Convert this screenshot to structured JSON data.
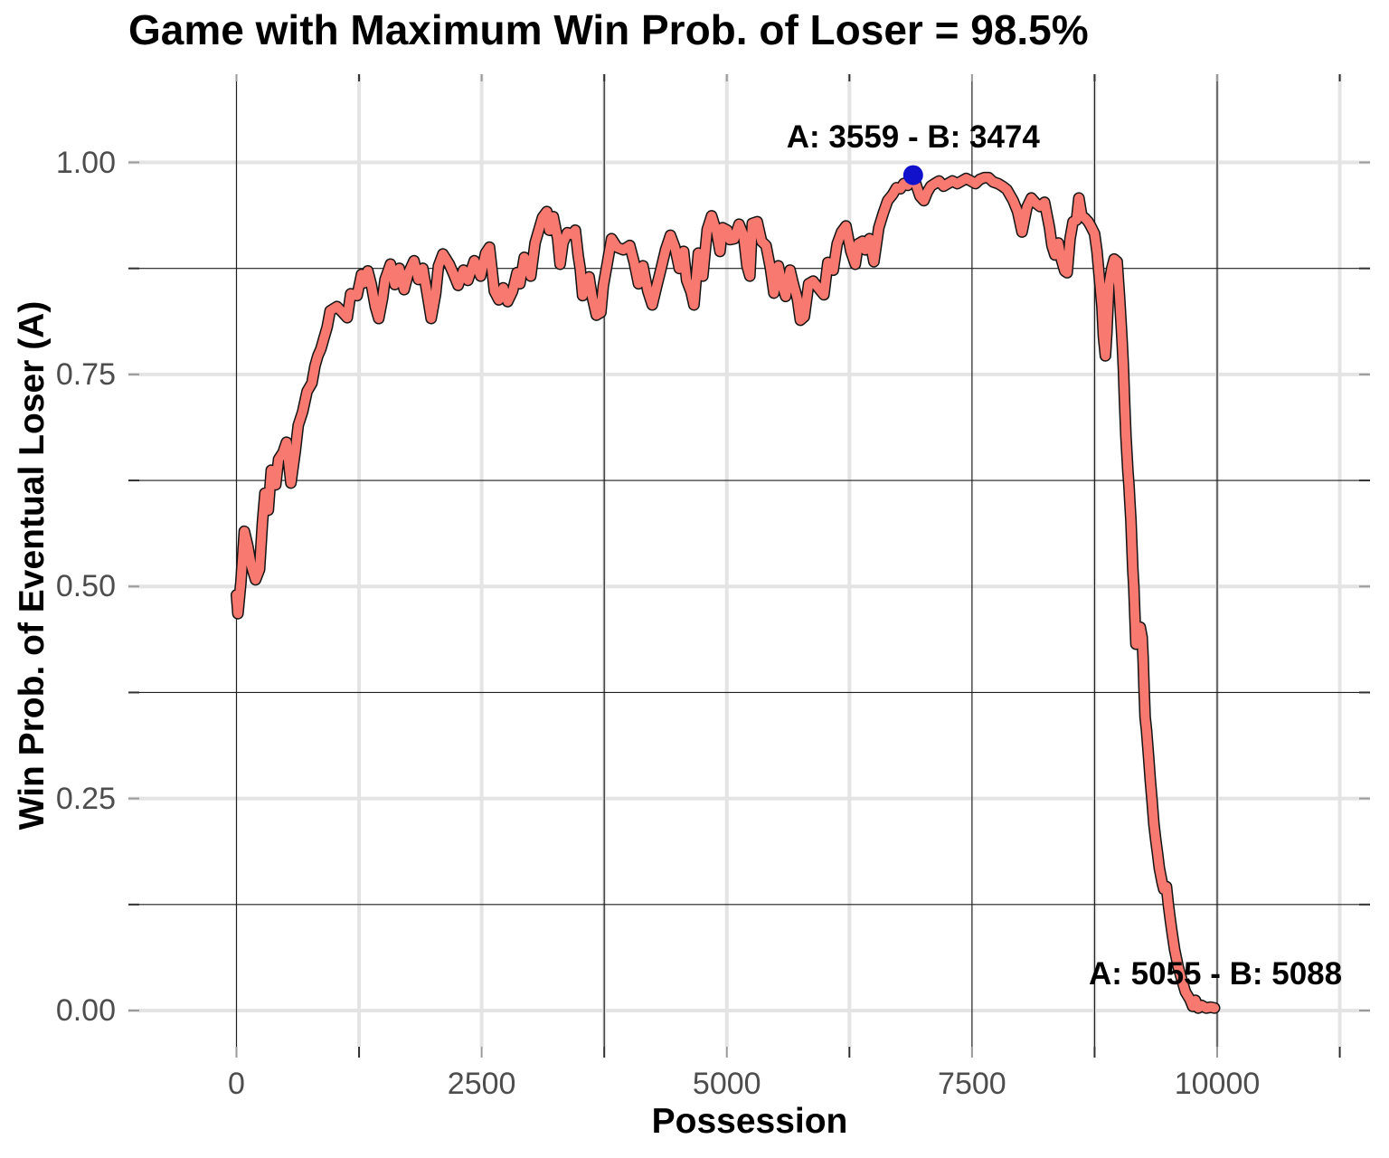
{
  "title": "Game with Maximum Win Prob. of Loser = 98.5%",
  "chart_data": {
    "type": "line",
    "title": "Game with Maximum Win Prob. of Loser = 98.5%",
    "xlabel": "Possession",
    "ylabel": "Win Prob. of Eventual Loser (A)",
    "x_tick_labels": [
      "0",
      "2500",
      "5000",
      "7500",
      "10000"
    ],
    "x_tick_values": [
      0,
      2500,
      5000,
      7500,
      10000
    ],
    "x_minor_ticks": [
      1250,
      3750,
      6250,
      8750,
      11250
    ],
    "y_tick_labels": [
      "0.00",
      "0.25",
      "0.50",
      "0.75",
      "1.00"
    ],
    "y_tick_values": [
      0,
      0.25,
      0.5,
      0.75,
      1
    ],
    "y_minor_ticks": [
      0.125,
      0.375,
      0.625,
      0.875
    ],
    "xlim": [
      -1100,
      11560
    ],
    "ylim": [
      -0.043,
      1.105
    ],
    "grid": {
      "gray_color": "#e4e4e4",
      "dark_color": "#1f1f1f",
      "gray_vertical": [
        1250,
        2500,
        3750,
        5000,
        6250,
        8750,
        10000,
        11250
      ],
      "dark_vertical": [
        0,
        3750,
        7500,
        8750,
        10000
      ],
      "gray_horizontal": [
        0,
        0.25,
        0.5,
        0.75,
        1
      ],
      "dark_horizontal": [
        0.125,
        0.375,
        0.625,
        0.875
      ]
    },
    "ticks": {
      "major_color": "#9a9a9a",
      "minor_color": "#2f2f2f"
    },
    "max_point": {
      "possession": 6900,
      "win_prob": 0.985,
      "color": "#1111cc",
      "score_label": "A: 3559 - B: 3474"
    },
    "annotations": [
      {
        "text": "A: 3559 - B: 3474",
        "x": 6900,
        "y": 1.029
      },
      {
        "text": "A: 5055 - B: 5088",
        "x": 9982,
        "y": 0.043
      }
    ],
    "series": [
      {
        "name": "Win Prob. of Eventual Loser (A)",
        "color": "#F8796F",
        "outline_color": "#141414",
        "points": [
          [
            0,
            0.49
          ],
          [
            15,
            0.468
          ],
          [
            45,
            0.505
          ],
          [
            80,
            0.565
          ],
          [
            115,
            0.548
          ],
          [
            150,
            0.525
          ],
          [
            195,
            0.508
          ],
          [
            235,
            0.52
          ],
          [
            265,
            0.575
          ],
          [
            290,
            0.61
          ],
          [
            325,
            0.59
          ],
          [
            355,
            0.637
          ],
          [
            400,
            0.62
          ],
          [
            430,
            0.65
          ],
          [
            475,
            0.658
          ],
          [
            510,
            0.67
          ],
          [
            555,
            0.622
          ],
          [
            600,
            0.66
          ],
          [
            630,
            0.69
          ],
          [
            675,
            0.706
          ],
          [
            720,
            0.73
          ],
          [
            770,
            0.74
          ],
          [
            800,
            0.76
          ],
          [
            830,
            0.772
          ],
          [
            860,
            0.78
          ],
          [
            890,
            0.792
          ],
          [
            925,
            0.806
          ],
          [
            955,
            0.825
          ],
          [
            1025,
            0.83
          ],
          [
            1090,
            0.822
          ],
          [
            1130,
            0.817
          ],
          [
            1165,
            0.845
          ],
          [
            1230,
            0.843
          ],
          [
            1275,
            0.868
          ],
          [
            1305,
            0.858
          ],
          [
            1340,
            0.872
          ],
          [
            1375,
            0.856
          ],
          [
            1415,
            0.83
          ],
          [
            1450,
            0.816
          ],
          [
            1490,
            0.84
          ],
          [
            1515,
            0.862
          ],
          [
            1570,
            0.88
          ],
          [
            1615,
            0.856
          ],
          [
            1660,
            0.875
          ],
          [
            1710,
            0.85
          ],
          [
            1755,
            0.87
          ],
          [
            1810,
            0.884
          ],
          [
            1855,
            0.862
          ],
          [
            1900,
            0.875
          ],
          [
            1945,
            0.845
          ],
          [
            1985,
            0.816
          ],
          [
            2030,
            0.845
          ],
          [
            2060,
            0.878
          ],
          [
            2105,
            0.892
          ],
          [
            2170,
            0.88
          ],
          [
            2215,
            0.868
          ],
          [
            2260,
            0.855
          ],
          [
            2315,
            0.873
          ],
          [
            2360,
            0.861
          ],
          [
            2425,
            0.884
          ],
          [
            2490,
            0.866
          ],
          [
            2540,
            0.893
          ],
          [
            2580,
            0.9
          ],
          [
            2630,
            0.848
          ],
          [
            2675,
            0.838
          ],
          [
            2720,
            0.852
          ],
          [
            2765,
            0.836
          ],
          [
            2815,
            0.848
          ],
          [
            2860,
            0.87
          ],
          [
            2890,
            0.857
          ],
          [
            2935,
            0.888
          ],
          [
            3000,
            0.866
          ],
          [
            3045,
            0.905
          ],
          [
            3070,
            0.915
          ],
          [
            3120,
            0.935
          ],
          [
            3165,
            0.942
          ],
          [
            3190,
            0.92
          ],
          [
            3230,
            0.936
          ],
          [
            3275,
            0.91
          ],
          [
            3300,
            0.88
          ],
          [
            3330,
            0.905
          ],
          [
            3375,
            0.917
          ],
          [
            3420,
            0.915
          ],
          [
            3455,
            0.92
          ],
          [
            3485,
            0.89
          ],
          [
            3505,
            0.875
          ],
          [
            3530,
            0.843
          ],
          [
            3560,
            0.854
          ],
          [
            3595,
            0.865
          ],
          [
            3625,
            0.843
          ],
          [
            3670,
            0.82
          ],
          [
            3715,
            0.823
          ],
          [
            3740,
            0.854
          ],
          [
            3780,
            0.88
          ],
          [
            3825,
            0.91
          ],
          [
            3880,
            0.9
          ],
          [
            3945,
            0.897
          ],
          [
            4010,
            0.902
          ],
          [
            4055,
            0.882
          ],
          [
            4100,
            0.857
          ],
          [
            4145,
            0.878
          ],
          [
            4195,
            0.848
          ],
          [
            4240,
            0.832
          ],
          [
            4285,
            0.854
          ],
          [
            4330,
            0.875
          ],
          [
            4375,
            0.897
          ],
          [
            4425,
            0.914
          ],
          [
            4470,
            0.9
          ],
          [
            4515,
            0.875
          ],
          [
            4560,
            0.895
          ],
          [
            4590,
            0.861
          ],
          [
            4635,
            0.847
          ],
          [
            4665,
            0.832
          ],
          [
            4710,
            0.893
          ],
          [
            4755,
            0.866
          ],
          [
            4800,
            0.921
          ],
          [
            4845,
            0.937
          ],
          [
            4895,
            0.918
          ],
          [
            4930,
            0.895
          ],
          [
            4955,
            0.923
          ],
          [
            5005,
            0.92
          ],
          [
            5030,
            0.909
          ],
          [
            5075,
            0.91
          ],
          [
            5125,
            0.927
          ],
          [
            5170,
            0.914
          ],
          [
            5205,
            0.878
          ],
          [
            5235,
            0.866
          ],
          [
            5260,
            0.928
          ],
          [
            5310,
            0.93
          ],
          [
            5355,
            0.907
          ],
          [
            5400,
            0.902
          ],
          [
            5445,
            0.875
          ],
          [
            5480,
            0.846
          ],
          [
            5525,
            0.878
          ],
          [
            5570,
            0.853
          ],
          [
            5600,
            0.842
          ],
          [
            5645,
            0.873
          ],
          [
            5675,
            0.858
          ],
          [
            5720,
            0.839
          ],
          [
            5750,
            0.814
          ],
          [
            5790,
            0.818
          ],
          [
            5835,
            0.857
          ],
          [
            5880,
            0.86
          ],
          [
            5940,
            0.851
          ],
          [
            5990,
            0.844
          ],
          [
            6030,
            0.882
          ],
          [
            6085,
            0.873
          ],
          [
            6125,
            0.904
          ],
          [
            6170,
            0.918
          ],
          [
            6215,
            0.925
          ],
          [
            6265,
            0.895
          ],
          [
            6310,
            0.88
          ],
          [
            6340,
            0.904
          ],
          [
            6385,
            0.907
          ],
          [
            6410,
            0.897
          ],
          [
            6455,
            0.91
          ],
          [
            6500,
            0.883
          ],
          [
            6550,
            0.923
          ],
          [
            6595,
            0.94
          ],
          [
            6640,
            0.955
          ],
          [
            6690,
            0.962
          ],
          [
            6730,
            0.97
          ],
          [
            6770,
            0.969
          ],
          [
            6805,
            0.975
          ],
          [
            6845,
            0.973
          ],
          [
            6870,
            0.98
          ],
          [
            6900,
            0.985
          ],
          [
            6935,
            0.972
          ],
          [
            6970,
            0.96
          ],
          [
            7010,
            0.955
          ],
          [
            7045,
            0.965
          ],
          [
            7080,
            0.972
          ],
          [
            7120,
            0.975
          ],
          [
            7165,
            0.978
          ],
          [
            7210,
            0.972
          ],
          [
            7255,
            0.975
          ],
          [
            7300,
            0.978
          ],
          [
            7350,
            0.975
          ],
          [
            7395,
            0.978
          ],
          [
            7440,
            0.981
          ],
          [
            7490,
            0.978
          ],
          [
            7535,
            0.975
          ],
          [
            7580,
            0.98
          ],
          [
            7625,
            0.982
          ],
          [
            7670,
            0.982
          ],
          [
            7715,
            0.977
          ],
          [
            7765,
            0.975
          ],
          [
            7810,
            0.972
          ],
          [
            7855,
            0.968
          ],
          [
            7920,
            0.955
          ],
          [
            7965,
            0.942
          ],
          [
            8010,
            0.918
          ],
          [
            8060,
            0.947
          ],
          [
            8105,
            0.958
          ],
          [
            8150,
            0.952
          ],
          [
            8195,
            0.948
          ],
          [
            8240,
            0.953
          ],
          [
            8290,
            0.923
          ],
          [
            8315,
            0.902
          ],
          [
            8345,
            0.891
          ],
          [
            8380,
            0.905
          ],
          [
            8410,
            0.886
          ],
          [
            8445,
            0.872
          ],
          [
            8470,
            0.87
          ],
          [
            8500,
            0.91
          ],
          [
            8530,
            0.93
          ],
          [
            8565,
            0.932
          ],
          [
            8590,
            0.958
          ],
          [
            8620,
            0.937
          ],
          [
            8655,
            0.934
          ],
          [
            8685,
            0.93
          ],
          [
            8710,
            0.925
          ],
          [
            8750,
            0.916
          ],
          [
            8775,
            0.895
          ],
          [
            8805,
            0.856
          ],
          [
            8825,
            0.83
          ],
          [
            8840,
            0.795
          ],
          [
            8860,
            0.772
          ],
          [
            8875,
            0.8
          ],
          [
            8895,
            0.855
          ],
          [
            8925,
            0.875
          ],
          [
            8950,
            0.886
          ],
          [
            8980,
            0.883
          ],
          [
            9005,
            0.84
          ],
          [
            9025,
            0.8
          ],
          [
            9035,
            0.78
          ],
          [
            9045,
            0.755
          ],
          [
            9055,
            0.72
          ],
          [
            9070,
            0.677
          ],
          [
            9080,
            0.656
          ],
          [
            9090,
            0.635
          ],
          [
            9100,
            0.62
          ],
          [
            9110,
            0.598
          ],
          [
            9120,
            0.578
          ],
          [
            9130,
            0.55
          ],
          [
            9140,
            0.52
          ],
          [
            9150,
            0.5
          ],
          [
            9160,
            0.468
          ],
          [
            9172,
            0.432
          ],
          [
            9190,
            0.448
          ],
          [
            9215,
            0.452
          ],
          [
            9235,
            0.44
          ],
          [
            9245,
            0.415
          ],
          [
            9255,
            0.378
          ],
          [
            9265,
            0.346
          ],
          [
            9280,
            0.33
          ],
          [
            9300,
            0.3
          ],
          [
            9318,
            0.272
          ],
          [
            9336,
            0.247
          ],
          [
            9355,
            0.22
          ],
          [
            9375,
            0.2
          ],
          [
            9392,
            0.185
          ],
          [
            9410,
            0.168
          ],
          [
            9437,
            0.152
          ],
          [
            9455,
            0.143
          ],
          [
            9483,
            0.146
          ],
          [
            9502,
            0.125
          ],
          [
            9520,
            0.109
          ],
          [
            9540,
            0.092
          ],
          [
            9566,
            0.072
          ],
          [
            9602,
            0.052
          ],
          [
            9640,
            0.036
          ],
          [
            9676,
            0.022
          ],
          [
            9722,
            0.013
          ],
          [
            9750,
            0.005
          ],
          [
            9778,
            0.012
          ],
          [
            9806,
            0.003
          ],
          [
            9842,
            0.006
          ],
          [
            9888,
            0.003
          ],
          [
            9934,
            0.004
          ],
          [
            9972,
            0.003
          ]
        ]
      }
    ]
  }
}
